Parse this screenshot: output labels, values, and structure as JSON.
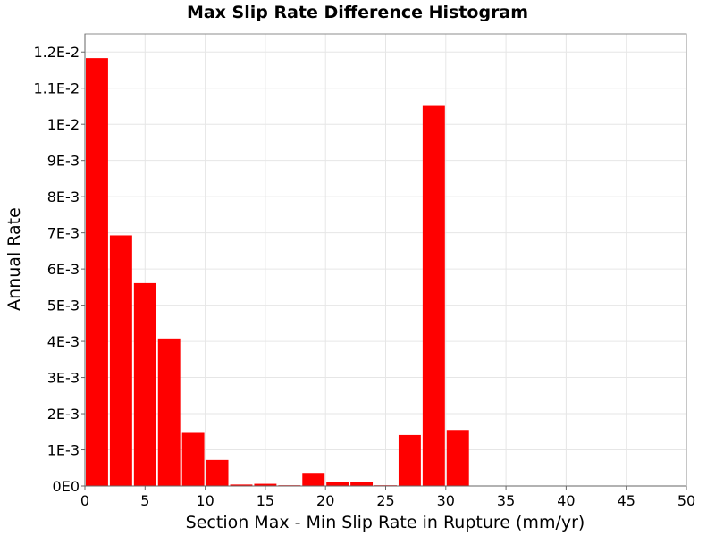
{
  "chart_data": {
    "type": "bar",
    "title": "Max Slip Rate Difference Histogram",
    "xlabel": "Section Max - Min Slip Rate in Rupture (mm/yr)",
    "ylabel": "Annual Rate",
    "xlim": [
      0,
      50
    ],
    "ylim": [
      0,
      0.0125
    ],
    "x_ticks": [
      "0",
      "5",
      "10",
      "15",
      "20",
      "25",
      "30",
      "35",
      "40",
      "45",
      "50"
    ],
    "y_ticks": [
      "0E0",
      "1E-3",
      "2E-3",
      "3E-3",
      "4E-3",
      "5E-3",
      "6E-3",
      "7E-3",
      "8E-3",
      "9E-3",
      "1E-2",
      "1.1E-2",
      "1.2E-2"
    ],
    "bin_width": 2,
    "bin_starts": [
      0,
      2,
      4,
      6,
      8,
      10,
      12,
      14,
      16,
      18,
      20,
      22,
      24,
      26,
      28,
      30
    ],
    "values": [
      0.01183,
      0.00693,
      0.00561,
      0.00408,
      0.00147,
      0.00072,
      4e-05,
      6e-05,
      2e-05,
      0.00034,
      0.0001,
      0.00012,
      2e-05,
      0.00141,
      0.01051,
      0.00155
    ],
    "bar_color": "#ff0000",
    "grid": true
  }
}
